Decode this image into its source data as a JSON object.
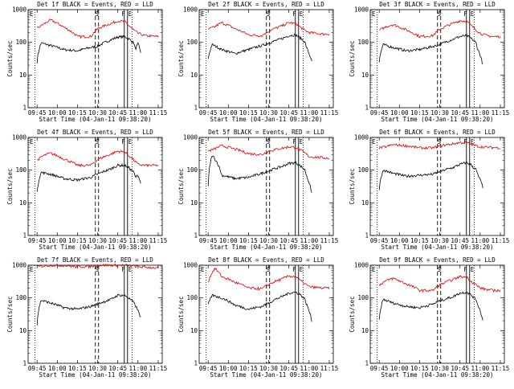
{
  "common": {
    "xtitle": "Start Time (04-Jan-11 09:38:20)",
    "ytitle": "Counts/sec",
    "xticks": [
      "09:45",
      "10:00",
      "10:15",
      "10:30",
      "10:45",
      "11:00",
      "11:15"
    ],
    "yticks": [
      "1",
      "10",
      "100",
      "1000"
    ],
    "flags": [
      "E",
      "S",
      "F",
      "E"
    ],
    "colors": {
      "events": "#000000",
      "lld": "#e00000"
    }
  },
  "chart_data": [
    {
      "type": "line",
      "title": "Det 1f BLACK = Events, RED = LLD",
      "xlim": [
        "09:38:20",
        "11:18"
      ],
      "ylim": [
        1,
        1000
      ],
      "yscale": "log",
      "series": [
        {
          "name": "Events",
          "x": [
            "09:45",
            "09:48",
            "09:55",
            "10:05",
            "10:15",
            "10:25",
            "10:30",
            "10:40",
            "10:45",
            "10:50",
            "10:53",
            "10:55",
            "10:57",
            "10:58",
            "11:00",
            "11:02"
          ],
          "values": [
            25,
            95,
            80,
            60,
            55,
            70,
            75,
            120,
            145,
            150,
            130,
            110,
            95,
            60,
            90,
            50
          ]
        },
        {
          "name": "LLD",
          "x": [
            "09:45",
            "09:50",
            "09:55",
            "10:05",
            "10:15",
            "10:25",
            "10:30",
            "10:40",
            "10:45",
            "10:50",
            "10:53",
            "10:57",
            "11:00",
            "11:05",
            "11:10",
            "11:15"
          ],
          "values": [
            270,
            360,
            480,
            290,
            150,
            150,
            260,
            380,
            450,
            430,
            330,
            230,
            190,
            160,
            155,
            150
          ]
        }
      ]
    },
    {
      "type": "line",
      "title": "Det 2f BLACK = Events, RED = LLD",
      "xlim": [
        "09:38:20",
        "11:18"
      ],
      "ylim": [
        1,
        1000
      ],
      "yscale": "log",
      "series": [
        {
          "name": "Events",
          "x": [
            "09:45",
            "09:48",
            "09:55",
            "10:05",
            "10:15",
            "10:25",
            "10:30",
            "10:40",
            "10:45",
            "10:50",
            "10:53",
            "10:55",
            "10:57",
            "10:58",
            "11:00",
            "11:02"
          ],
          "values": [
            30,
            85,
            60,
            45,
            60,
            80,
            95,
            130,
            160,
            170,
            140,
            120,
            100,
            70,
            45,
            25
          ]
        },
        {
          "name": "LLD",
          "x": [
            "09:45",
            "09:50",
            "09:55",
            "10:05",
            "10:15",
            "10:25",
            "10:30",
            "10:40",
            "10:45",
            "10:50",
            "10:53",
            "10:57",
            "11:00",
            "11:05",
            "11:10",
            "11:15"
          ],
          "values": [
            250,
            300,
            400,
            260,
            170,
            160,
            220,
            320,
            400,
            380,
            300,
            230,
            200,
            190,
            180,
            180
          ]
        }
      ]
    },
    {
      "type": "line",
      "title": "Det 3f BLACK = Events, RED = LLD",
      "xlim": [
        "09:38:20",
        "11:18"
      ],
      "ylim": [
        1,
        1000
      ],
      "yscale": "log",
      "series": [
        {
          "name": "Events",
          "x": [
            "09:45",
            "09:48",
            "09:55",
            "10:05",
            "10:15",
            "10:25",
            "10:30",
            "10:40",
            "10:45",
            "10:50",
            "10:53",
            "10:55",
            "10:57",
            "10:58",
            "11:00",
            "11:02"
          ],
          "values": [
            25,
            85,
            70,
            55,
            60,
            75,
            85,
            125,
            150,
            160,
            135,
            115,
            95,
            65,
            40,
            20
          ]
        },
        {
          "name": "LLD",
          "x": [
            "09:45",
            "09:50",
            "09:55",
            "10:05",
            "10:15",
            "10:25",
            "10:30",
            "10:40",
            "10:45",
            "10:50",
            "10:53",
            "10:57",
            "11:00",
            "11:05",
            "11:10",
            "11:15"
          ],
          "values": [
            230,
            300,
            350,
            240,
            150,
            160,
            250,
            380,
            460,
            440,
            330,
            240,
            190,
            160,
            150,
            150
          ]
        }
      ]
    },
    {
      "type": "line",
      "title": "Det 4f BLACK = Events, RED = LLD",
      "xlim": [
        "09:38:20",
        "11:18"
      ],
      "ylim": [
        1,
        1000
      ],
      "yscale": "log",
      "series": [
        {
          "name": "Events",
          "x": [
            "09:45",
            "09:48",
            "09:55",
            "10:05",
            "10:15",
            "10:25",
            "10:30",
            "10:40",
            "10:45",
            "10:50",
            "10:53",
            "10:55",
            "10:57",
            "10:58",
            "11:00",
            "11:02"
          ],
          "values": [
            20,
            85,
            75,
            55,
            50,
            60,
            75,
            110,
            140,
            140,
            120,
            100,
            85,
            60,
            70,
            40
          ]
        },
        {
          "name": "LLD",
          "x": [
            "09:45",
            "09:50",
            "09:55",
            "10:05",
            "10:15",
            "10:25",
            "10:30",
            "10:40",
            "10:45",
            "10:50",
            "10:53",
            "10:57",
            "11:00",
            "11:05",
            "11:10",
            "11:15"
          ],
          "values": [
            200,
            280,
            330,
            220,
            140,
            140,
            210,
            310,
            380,
            360,
            280,
            200,
            150,
            140,
            140,
            140
          ]
        }
      ]
    },
    {
      "type": "line",
      "title": "Det 5f BLACK = Events, RED = LLD",
      "xlim": [
        "09:38:20",
        "11:18"
      ],
      "ylim": [
        1,
        1000
      ],
      "yscale": "log",
      "series": [
        {
          "name": "Events",
          "x": [
            "09:45",
            "09:48",
            "09:55",
            "10:05",
            "10:15",
            "10:25",
            "10:30",
            "10:40",
            "10:45",
            "10:50",
            "10:53",
            "10:55",
            "10:57",
            "10:58",
            "11:00",
            "11:02"
          ],
          "values": [
            30,
            280,
            70,
            55,
            60,
            80,
            95,
            130,
            160,
            170,
            140,
            120,
            100,
            70,
            40,
            20
          ]
        },
        {
          "name": "LLD",
          "x": [
            "09:45",
            "09:50",
            "09:55",
            "10:05",
            "10:15",
            "10:25",
            "10:30",
            "10:40",
            "10:45",
            "10:50",
            "10:53",
            "10:57",
            "11:00",
            "11:05",
            "11:10",
            "11:15"
          ],
          "values": [
            380,
            450,
            560,
            440,
            320,
            300,
            380,
            470,
            520,
            500,
            420,
            330,
            260,
            250,
            240,
            230
          ]
        }
      ]
    },
    {
      "type": "line",
      "title": "Det 6f BLACK = Events, RED = LLD",
      "xlim": [
        "09:38:20",
        "11:18"
      ],
      "ylim": [
        1,
        1000
      ],
      "yscale": "log",
      "series": [
        {
          "name": "Events",
          "x": [
            "09:45",
            "09:48",
            "09:55",
            "10:05",
            "10:15",
            "10:25",
            "10:30",
            "10:40",
            "10:45",
            "10:50",
            "10:53",
            "10:55",
            "10:57",
            "10:58",
            "11:00",
            "11:02"
          ],
          "values": [
            25,
            100,
            80,
            65,
            70,
            75,
            90,
            120,
            150,
            170,
            150,
            120,
            105,
            75,
            50,
            30
          ]
        },
        {
          "name": "LLD",
          "x": [
            "09:45",
            "09:50",
            "09:55",
            "10:05",
            "10:15",
            "10:25",
            "10:30",
            "10:40",
            "10:45",
            "10:50",
            "10:53",
            "10:57",
            "11:00",
            "11:05",
            "11:10",
            "11:15"
          ],
          "values": [
            480,
            520,
            600,
            560,
            480,
            480,
            550,
            640,
            700,
            690,
            620,
            560,
            520,
            500,
            490,
            480
          ]
        }
      ]
    },
    {
      "type": "line",
      "title": "Det 7f BLACK = Events, RED = LLD",
      "xlim": [
        "09:38:20",
        "11:18"
      ],
      "ylim": [
        1,
        1000
      ],
      "yscale": "log",
      "series": [
        {
          "name": "Events",
          "x": [
            "09:45",
            "09:48",
            "09:55",
            "10:05",
            "10:15",
            "10:25",
            "10:30",
            "10:40",
            "10:45",
            "10:50",
            "10:53",
            "10:55",
            "10:57",
            "10:58",
            "11:00",
            "11:02"
          ],
          "values": [
            15,
            85,
            70,
            50,
            45,
            55,
            65,
            90,
            120,
            120,
            100,
            85,
            70,
            60,
            40,
            25
          ]
        },
        {
          "name": "LLD",
          "x": [
            "09:45",
            "09:50",
            "09:55",
            "10:05",
            "10:15",
            "10:25",
            "10:30",
            "10:40",
            "10:45",
            "10:50",
            "10:53",
            "10:57",
            "11:00",
            "11:05",
            "11:10",
            "11:15"
          ],
          "values": [
            900,
            950,
            1000,
            980,
            900,
            920,
            1000,
            1000,
            1000,
            1000,
            980,
            950,
            900,
            880,
            850,
            820
          ]
        }
      ]
    },
    {
      "type": "line",
      "title": "Det 8f BLACK = Events, RED = LLD",
      "xlim": [
        "09:38:20",
        "11:18"
      ],
      "ylim": [
        1,
        1000
      ],
      "yscale": "log",
      "series": [
        {
          "name": "Events",
          "x": [
            "09:45",
            "09:48",
            "09:55",
            "10:05",
            "10:15",
            "10:25",
            "10:30",
            "10:40",
            "10:45",
            "10:50",
            "10:53",
            "10:55",
            "10:57",
            "10:58",
            "11:00",
            "11:02"
          ],
          "values": [
            60,
            120,
            100,
            60,
            45,
            55,
            70,
            110,
            140,
            150,
            130,
            110,
            90,
            65,
            40,
            20
          ]
        },
        {
          "name": "LLD",
          "x": [
            "09:45",
            "09:50",
            "09:55",
            "10:05",
            "10:15",
            "10:25",
            "10:30",
            "10:40",
            "10:45",
            "10:50",
            "10:53",
            "10:57",
            "11:00",
            "11:05",
            "11:10",
            "11:15"
          ],
          "values": [
            300,
            800,
            450,
            300,
            200,
            190,
            260,
            380,
            470,
            450,
            350,
            270,
            220,
            210,
            200,
            200
          ]
        }
      ]
    },
    {
      "type": "line",
      "title": "Det 9f BLACK = Events, RED = LLD",
      "xlim": [
        "09:38:20",
        "11:18"
      ],
      "ylim": [
        1,
        1000
      ],
      "yscale": "log",
      "series": [
        {
          "name": "Events",
          "x": [
            "09:45",
            "09:48",
            "09:55",
            "10:05",
            "10:15",
            "10:25",
            "10:30",
            "10:40",
            "10:45",
            "10:50",
            "10:53",
            "10:55",
            "10:57",
            "10:58",
            "11:00",
            "11:02"
          ],
          "values": [
            20,
            90,
            70,
            55,
            50,
            65,
            80,
            110,
            140,
            150,
            125,
            105,
            90,
            65,
            40,
            20
          ]
        },
        {
          "name": "LLD",
          "x": [
            "09:45",
            "09:50",
            "09:55",
            "10:05",
            "10:15",
            "10:25",
            "10:30",
            "10:40",
            "10:45",
            "10:50",
            "10:53",
            "10:57",
            "11:00",
            "11:05",
            "11:10",
            "11:15"
          ],
          "values": [
            250,
            330,
            400,
            270,
            170,
            170,
            250,
            370,
            450,
            430,
            330,
            250,
            200,
            180,
            170,
            170
          ]
        }
      ]
    }
  ]
}
